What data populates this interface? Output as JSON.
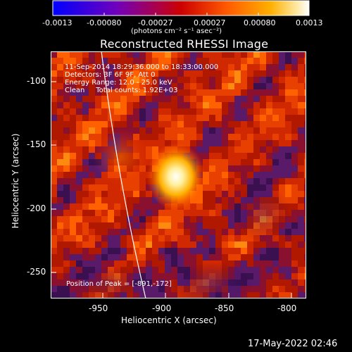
{
  "colorbar": {
    "ticks": [
      "-0.0013",
      "-0.00080",
      "-0.00027",
      "0.00027",
      "0.00080",
      "0.0013"
    ],
    "units": "(photons cm⁻² s⁻¹ asec⁻²)",
    "colors": [
      "#0000ff",
      "#6600cc",
      "#aa0066",
      "#cc1100",
      "#ee5500",
      "#ff9900",
      "#ffe090",
      "#ffffff"
    ]
  },
  "image": {
    "title": "Reconstructed RHESSI Image",
    "info_lines": [
      "11-Sep-2014 18:29:36.000 to 18:33:00.000",
      "Detectors: 3F 6F 9F, Att 0",
      "Energy Range: 12.0 - 25.0 keV",
      "Clean     Total counts: 1.92E+03"
    ],
    "peak_text": "Position of Peak = [-891,-172]",
    "xlabel": "Heliocentric X (arcsec)",
    "ylabel": "Heliocentric Y (arcsec)",
    "x_ticks": [
      "-950",
      "-900",
      "-850",
      "-800"
    ],
    "y_ticks": [
      "-100",
      "-150",
      "-200",
      "-250"
    ],
    "x_range": [
      -988,
      -793
    ],
    "y_range": [
      -268,
      -73
    ],
    "peak_position": [
      -891,
      -172
    ]
  },
  "timestamp": "17-May-2022 02:46"
}
